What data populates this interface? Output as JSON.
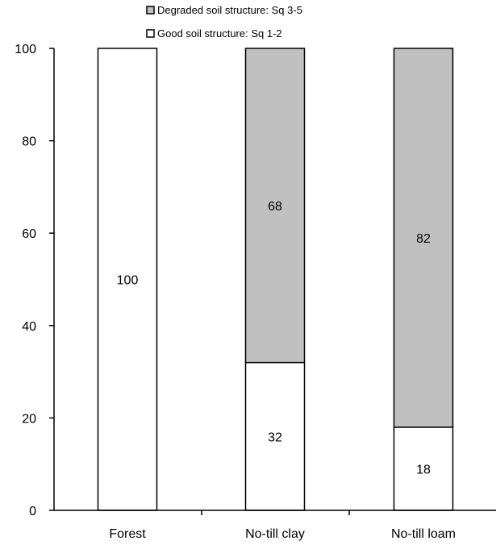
{
  "chart_data": {
    "type": "bar",
    "stacked": true,
    "categories": [
      "Forest",
      "No-till clay",
      "No-till loam"
    ],
    "series": [
      {
        "name": "Good soil structure: Sq 1-2",
        "values": [
          100,
          32,
          18
        ],
        "color": "#ffffff"
      },
      {
        "name": "Degraded soil structure: Sq 3-5",
        "values": [
          0,
          68,
          82
        ],
        "color": "#c0c0c0"
      }
    ],
    "data_labels": [
      {
        "category": "Forest",
        "series": "Good soil structure: Sq 1-2",
        "text": "100"
      },
      {
        "category": "No-till clay",
        "series": "Good soil structure: Sq 1-2",
        "text": "32"
      },
      {
        "category": "No-till clay",
        "series": "Degraded soil structure: Sq 3-5",
        "text": "68"
      },
      {
        "category": "No-till loam",
        "series": "Good soil structure: Sq 1-2",
        "text": "18"
      },
      {
        "category": "No-till loam",
        "series": "Degraded soil structure: Sq 3-5",
        "text": "82"
      }
    ],
    "ylim": [
      0,
      100
    ],
    "yticks": [
      "0",
      "20",
      "40",
      "60",
      "80",
      "100"
    ],
    "legend": {
      "position": "top",
      "order": [
        "Degraded soil structure: Sq 3-5",
        "Good soil structure: Sq 1-2"
      ]
    },
    "grid": false,
    "title": "",
    "xlabel": "",
    "ylabel": ""
  }
}
